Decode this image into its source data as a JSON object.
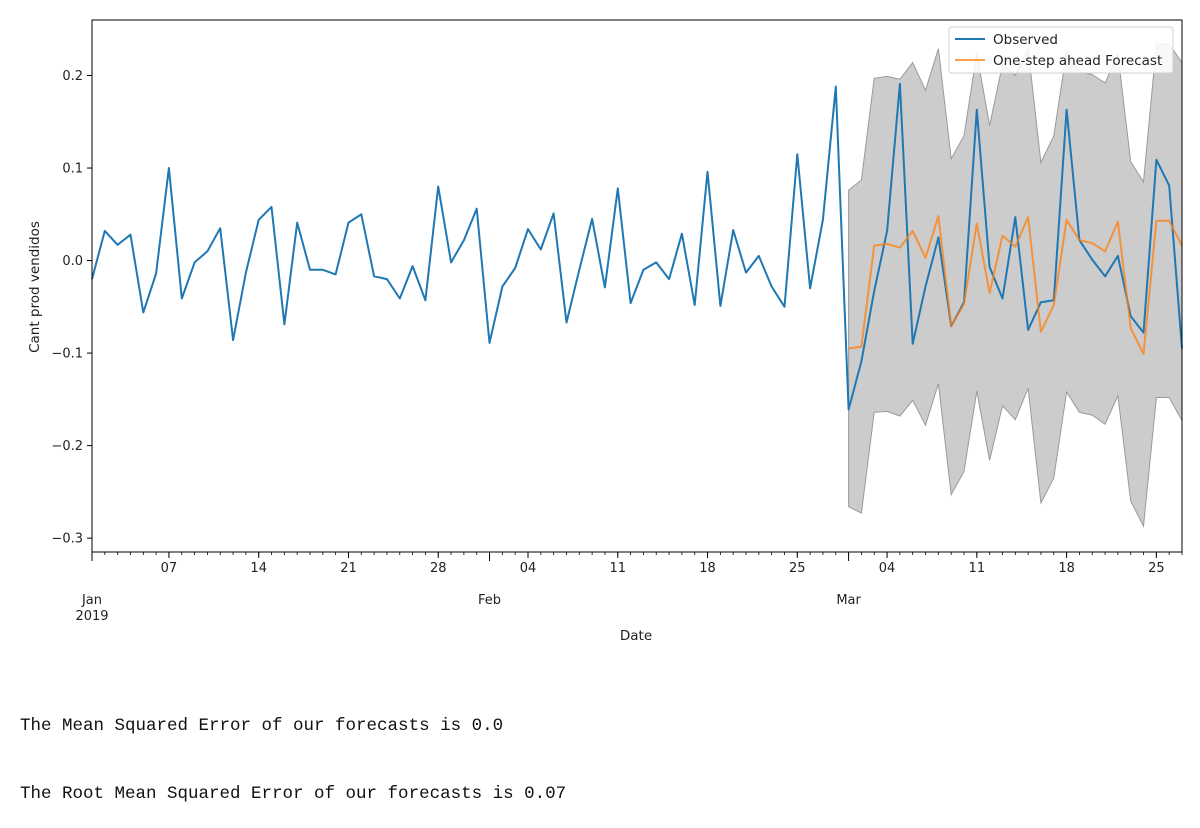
{
  "chart_data": {
    "type": "line",
    "xlabel": "Date",
    "ylabel": "Cant prod vendidos",
    "ylim": [
      -0.315,
      0.26
    ],
    "yticks": [
      0.2,
      0.1,
      0.0,
      -0.1,
      -0.2,
      -0.3
    ],
    "ytick_labels": [
      "0.2",
      "0.1",
      "0.0",
      "−0.1",
      "−0.2",
      "−0.3"
    ],
    "xlim": [
      "2019-01-01",
      "2019-03-27"
    ],
    "x_major_ticks": [
      {
        "date": "2019-01-01",
        "label": "Jan",
        "sublabel": "2019"
      },
      {
        "date": "2019-02-01",
        "label": "Feb",
        "sublabel": ""
      },
      {
        "date": "2019-03-01",
        "label": "Mar",
        "sublabel": ""
      }
    ],
    "x_minor_ticks": [
      {
        "date": "2019-01-07",
        "label": "07"
      },
      {
        "date": "2019-01-14",
        "label": "14"
      },
      {
        "date": "2019-01-21",
        "label": "21"
      },
      {
        "date": "2019-01-28",
        "label": "28"
      },
      {
        "date": "2019-02-04",
        "label": "04"
      },
      {
        "date": "2019-02-11",
        "label": "11"
      },
      {
        "date": "2019-02-18",
        "label": "18"
      },
      {
        "date": "2019-02-25",
        "label": "25"
      },
      {
        "date": "2019-03-04",
        "label": "04"
      },
      {
        "date": "2019-03-11",
        "label": "11"
      },
      {
        "date": "2019-03-18",
        "label": "18"
      },
      {
        "date": "2019-03-25",
        "label": "25"
      }
    ],
    "legend_position": "top-right",
    "colors": {
      "observed": "#1f77b4",
      "forecast": "#ff7f0e",
      "band": "#b0b0b0"
    },
    "series": [
      {
        "name": "Observed",
        "start_date": "2019-01-01",
        "step_days": 1,
        "values": [
          -0.02,
          0.032,
          0.017,
          0.028,
          -0.056,
          -0.014,
          0.1,
          -0.041,
          -0.002,
          0.01,
          0.035,
          -0.086,
          -0.013,
          0.044,
          0.058,
          -0.069,
          0.041,
          -0.01,
          -0.01,
          -0.015,
          0.041,
          0.05,
          -0.017,
          -0.02,
          -0.041,
          -0.006,
          -0.043,
          0.08,
          -0.002,
          0.022,
          0.056,
          -0.089,
          -0.028,
          -0.008,
          0.034,
          0.012,
          0.051,
          -0.067,
          -0.01,
          0.045,
          -0.029,
          0.078,
          -0.046,
          -0.01,
          -0.002,
          -0.02,
          0.029,
          -0.048,
          0.096,
          -0.049,
          0.033,
          -0.013,
          0.005,
          -0.028,
          -0.05,
          0.115,
          -0.03,
          0.044,
          0.188,
          -0.161,
          -0.109,
          -0.033,
          0.032,
          0.191,
          -0.09,
          -0.028,
          0.025,
          -0.071,
          -0.045,
          0.163,
          -0.007,
          -0.041,
          0.047,
          -0.075,
          -0.045,
          -0.043,
          0.163,
          0.022,
          0.001,
          -0.017,
          0.005,
          -0.06,
          -0.078,
          0.109,
          0.081,
          -0.095
        ]
      },
      {
        "name": "One-step ahead Forecast",
        "start_date": "2019-03-01",
        "step_days": 1,
        "values": [
          -0.095,
          -0.093,
          0.016,
          0.018,
          0.014,
          0.032,
          0.003,
          0.048,
          -0.071,
          -0.047,
          0.04,
          -0.035,
          0.027,
          0.015,
          0.047,
          -0.077,
          -0.048,
          0.044,
          0.022,
          0.019,
          0.01,
          0.042,
          -0.073,
          -0.101,
          0.043,
          0.043,
          0.016
        ]
      }
    ],
    "confidence_band": {
      "start_date": "2019-03-01",
      "step_days": 1,
      "upper": [
        0.076,
        0.087,
        0.197,
        0.199,
        0.196,
        0.214,
        0.184,
        0.229,
        0.11,
        0.135,
        0.224,
        0.146,
        0.212,
        0.2,
        0.229,
        0.106,
        0.135,
        0.226,
        0.204,
        0.201,
        0.192,
        0.223,
        0.107,
        0.085,
        0.234,
        0.234,
        0.214
      ],
      "lower": [
        -0.266,
        -0.273,
        -0.164,
        -0.163,
        -0.168,
        -0.151,
        -0.178,
        -0.133,
        -0.253,
        -0.228,
        -0.141,
        -0.216,
        -0.157,
        -0.172,
        -0.138,
        -0.262,
        -0.235,
        -0.142,
        -0.164,
        -0.167,
        -0.177,
        -0.146,
        -0.26,
        -0.287,
        -0.148,
        -0.148,
        -0.173
      ]
    }
  },
  "output": {
    "line1": "The Mean Squared Error of our forecasts is 0.0",
    "line2": "The Root Mean Squared Error of our forecasts is 0.07"
  }
}
